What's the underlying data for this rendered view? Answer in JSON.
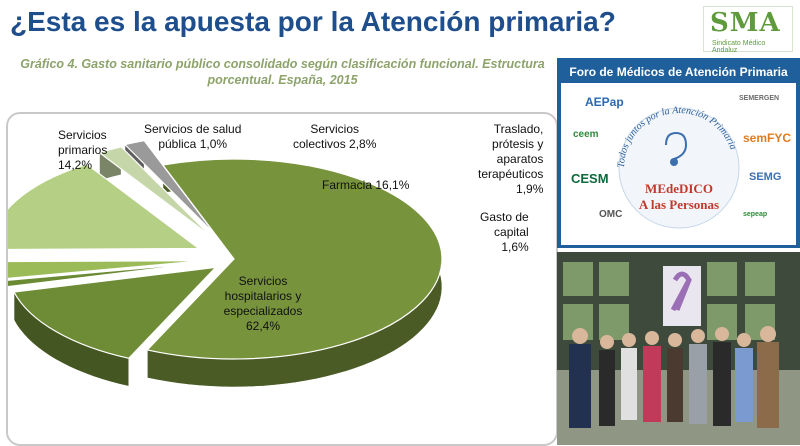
{
  "header": {
    "title": "¿Esta es la apuesta por la Atención primaria?"
  },
  "logo": {
    "brand": "SMA",
    "subtitle": "Sindicato Médico Andaluz"
  },
  "chart": {
    "caption_line1": "Gráfico 4. Gasto sanitario público consolidado según clasificación funcional. Estructura",
    "caption_line2": "porcentual. España, 2015"
  },
  "chart_data": {
    "type": "pie",
    "title": "Gráfico 4. Gasto sanitario público consolidado según clasificación funcional. Estructura porcentual. España, 2015",
    "categories": [
      "Servicios hospitalarios y especializados",
      "Servicios primarios",
      "Servicios de salud pública",
      "Servicios colectivos",
      "Farmacia",
      "Traslado, prótesis y aparatos terapéuticos",
      "Gasto de capital"
    ],
    "values": [
      62.4,
      14.2,
      1.0,
      2.8,
      16.1,
      1.9,
      1.6
    ],
    "labels": [
      "Servicios\nhospitalarios y\nespecializados\n62,4%",
      "Servicios\nprimarios\n14,2%",
      "Servicios de salud\npública 1,0%",
      "Servicios\ncolectivos 2,8%",
      "Farmacia 16,1%",
      "Traslado,\nprótesis y\naparatos\nterapéuticos\n1,9%",
      "Gasto de\ncapital\n1,6%"
    ],
    "colors": [
      "#77933c",
      "#6e8b36",
      "#6a8a34",
      "#9bbb59",
      "#b5cf84",
      "#c5d7a8",
      "#9a9a9a"
    ],
    "exploded": true,
    "legend": "none"
  },
  "forum": {
    "title": "Foro de Médicos de Atención Primaria",
    "slogan": "Todos juntos por la Atención Primaria",
    "center_line1": "MEdeDICO",
    "center_line2": "A las Personas",
    "orgs": [
      "AEPap",
      "SEMERGEN",
      "ceem",
      "semFYC",
      "CESM",
      "SEMG",
      "OMC",
      "sepeap"
    ]
  },
  "photo": {
    "description": "group-photo"
  }
}
